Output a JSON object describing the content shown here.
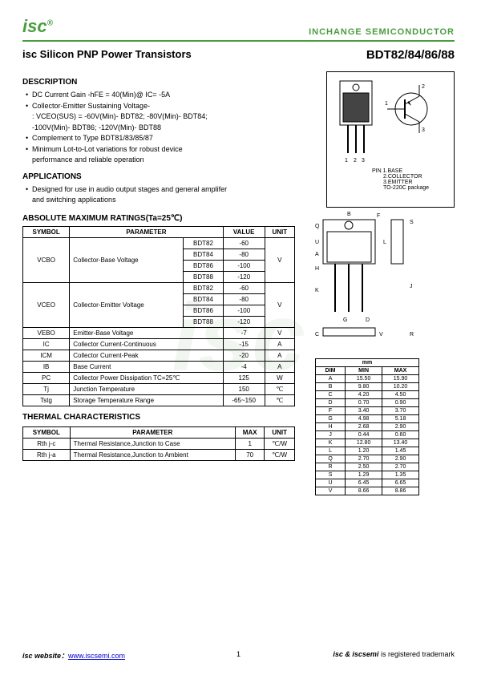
{
  "header": {
    "logo": "isc",
    "company": "INCHANGE SEMICONDUCTOR"
  },
  "title": {
    "left": "isc Silicon PNP Power Transistors",
    "right": "BDT82/84/86/88"
  },
  "description": {
    "heading": "DESCRIPTION",
    "items": [
      "DC Current Gain -hFE = 40(Min)@ IC= -5A",
      "Collector-Emitter Sustaining Voltage-",
      ": VCEO(SUS) = -60V(Min)- BDT82; -80V(Min)- BDT84;",
      "-100V(Min)- BDT86; -120V(Min)- BDT88",
      "Complement to Type BDT81/83/85/87",
      "Minimum Lot-to-Lot variations for robust device",
      "performance and reliable operation"
    ]
  },
  "applications": {
    "heading": "APPLICATIONS",
    "items": [
      "Designed for use in audio output stages and general amplifer",
      "and switching applications"
    ]
  },
  "package": {
    "pins": "1  2  3",
    "labels": [
      "PIN 1.BASE",
      "2.COLLECTOR",
      "3.EMITTER",
      "TO-220C package"
    ]
  },
  "ratings": {
    "heading": "ABSOLUTE MAXIMUM RATINGS(Ta=25℃)",
    "cols": [
      "SYMBOL",
      "PARAMETER",
      "",
      "VALUE",
      "UNIT"
    ],
    "rows": [
      {
        "sym": "VCBO",
        "param": "Collector-Base Voltage",
        "sub": [
          [
            "BDT82",
            "-60"
          ],
          [
            "BDT84",
            "-80"
          ],
          [
            "BDT86",
            "-100"
          ],
          [
            "BDT88",
            "-120"
          ]
        ],
        "unit": "V"
      },
      {
        "sym": "VCEO",
        "param": "Collector-Emitter Voltage",
        "sub": [
          [
            "BDT82",
            "-60"
          ],
          [
            "BDT84",
            "-80"
          ],
          [
            "BDT86",
            "-100"
          ],
          [
            "BDT88",
            "-120"
          ]
        ],
        "unit": "V"
      },
      {
        "sym": "VEBO",
        "param": "Emitter-Base Voltage",
        "val": "-7",
        "unit": "V"
      },
      {
        "sym": "IC",
        "param": "Collector Current-Continuous",
        "val": "-15",
        "unit": "A"
      },
      {
        "sym": "ICM",
        "param": "Collector Current-Peak",
        "val": "-20",
        "unit": "A"
      },
      {
        "sym": "IB",
        "param": "Base Current",
        "val": "-4",
        "unit": "A"
      },
      {
        "sym": "PC",
        "param": "Collector Power Dissipation TC=25℃",
        "val": "125",
        "unit": "W"
      },
      {
        "sym": "Tj",
        "param": "Junction Temperature",
        "val": "150",
        "unit": "℃"
      },
      {
        "sym": "Tstg",
        "param": "Storage Temperature Range",
        "val": "-65~150",
        "unit": "℃"
      }
    ]
  },
  "thermal": {
    "heading": "THERMAL CHARACTERISTICS",
    "cols": [
      "SYMBOL",
      "PARAMETER",
      "MAX",
      "UNIT"
    ],
    "rows": [
      [
        "Rth j-c",
        "Thermal Resistance,Junction to Case",
        "1",
        "℃/W"
      ],
      [
        "Rth j-a",
        "Thermal Resistance,Junction to Ambient",
        "70",
        "℃/W"
      ]
    ]
  },
  "dimensions": {
    "heading": "mm",
    "cols": [
      "DIM",
      "MIN",
      "MAX"
    ],
    "rows": [
      [
        "A",
        "15.50",
        "15.90"
      ],
      [
        "B",
        "9.80",
        "10.20"
      ],
      [
        "C",
        "4.20",
        "4.50"
      ],
      [
        "D",
        "0.70",
        "0.90"
      ],
      [
        "F",
        "3.40",
        "3.70"
      ],
      [
        "G",
        "4.98",
        "5.18"
      ],
      [
        "H",
        "2.68",
        "2.90"
      ],
      [
        "J",
        "0.44",
        "0.60"
      ],
      [
        "K",
        "12.80",
        "13.40"
      ],
      [
        "L",
        "1.20",
        "1.45"
      ],
      [
        "Q",
        "2.70",
        "2.90"
      ],
      [
        "R",
        "2.50",
        "2.70"
      ],
      [
        "S",
        "1.29",
        "1.35"
      ],
      [
        "U",
        "6.45",
        "6.65"
      ],
      [
        "V",
        "8.66",
        "8.86"
      ]
    ]
  },
  "footer": {
    "left_label": "isc website：",
    "url": "www.iscsemi.com",
    "page": "1",
    "right": "isc & iscsemi is registered trademark"
  }
}
